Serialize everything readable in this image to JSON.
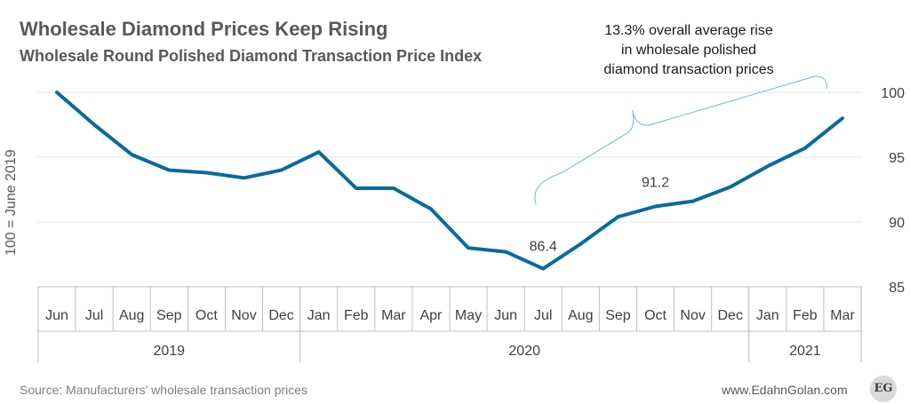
{
  "header": {
    "title": "Wholesale Diamond Prices Keep Rising",
    "subtitle": "Wholesale Round Polished Diamond Transaction Price Index"
  },
  "annotation": {
    "lines": [
      "13.3% overall average rise",
      "in wholesale polished",
      "diamond transaction prices"
    ]
  },
  "footer": {
    "source": "Source: Manufacturers' wholesale transaction prices",
    "site": "www.EdahnGolan.com",
    "logo_text": "EG"
  },
  "colors": {
    "line": "#0a6a9e",
    "brace": "#6fb6d9",
    "grid": "#e6e6e6",
    "axis": "#bfbfbf"
  },
  "chart_data": {
    "type": "line",
    "title": "Wholesale Round Polished Diamond Transaction Price Index",
    "ylabel": "100 = June 2019",
    "ylim": [
      85,
      100
    ],
    "yticks": [
      85,
      90,
      95,
      100
    ],
    "ytick_labels": [
      "85",
      "90",
      "95",
      "100"
    ],
    "grid": true,
    "categories": [
      "Jun",
      "Jul",
      "Aug",
      "Sep",
      "Oct",
      "Nov",
      "Dec",
      "Jan",
      "Feb",
      "Mar",
      "Apr",
      "May",
      "Jun",
      "Jul",
      "Aug",
      "Sep",
      "Oct",
      "Nov",
      "Dec",
      "Jan",
      "Feb",
      "Mar"
    ],
    "year_groups": [
      {
        "label": "2019",
        "start": 0,
        "end": 6
      },
      {
        "label": "2020",
        "start": 7,
        "end": 18
      },
      {
        "label": "2021",
        "start": 19,
        "end": 21
      }
    ],
    "values": [
      100,
      97.5,
      95.2,
      94.0,
      93.8,
      93.4,
      94.0,
      95.4,
      92.6,
      92.6,
      91.0,
      88.0,
      87.7,
      86.4,
      88.3,
      90.4,
      91.2,
      91.6,
      92.7,
      94.3,
      95.7,
      98.0
    ],
    "data_labels": [
      {
        "index": 13,
        "text": "86.4"
      },
      {
        "index": 16,
        "text": "91.2"
      }
    ]
  }
}
